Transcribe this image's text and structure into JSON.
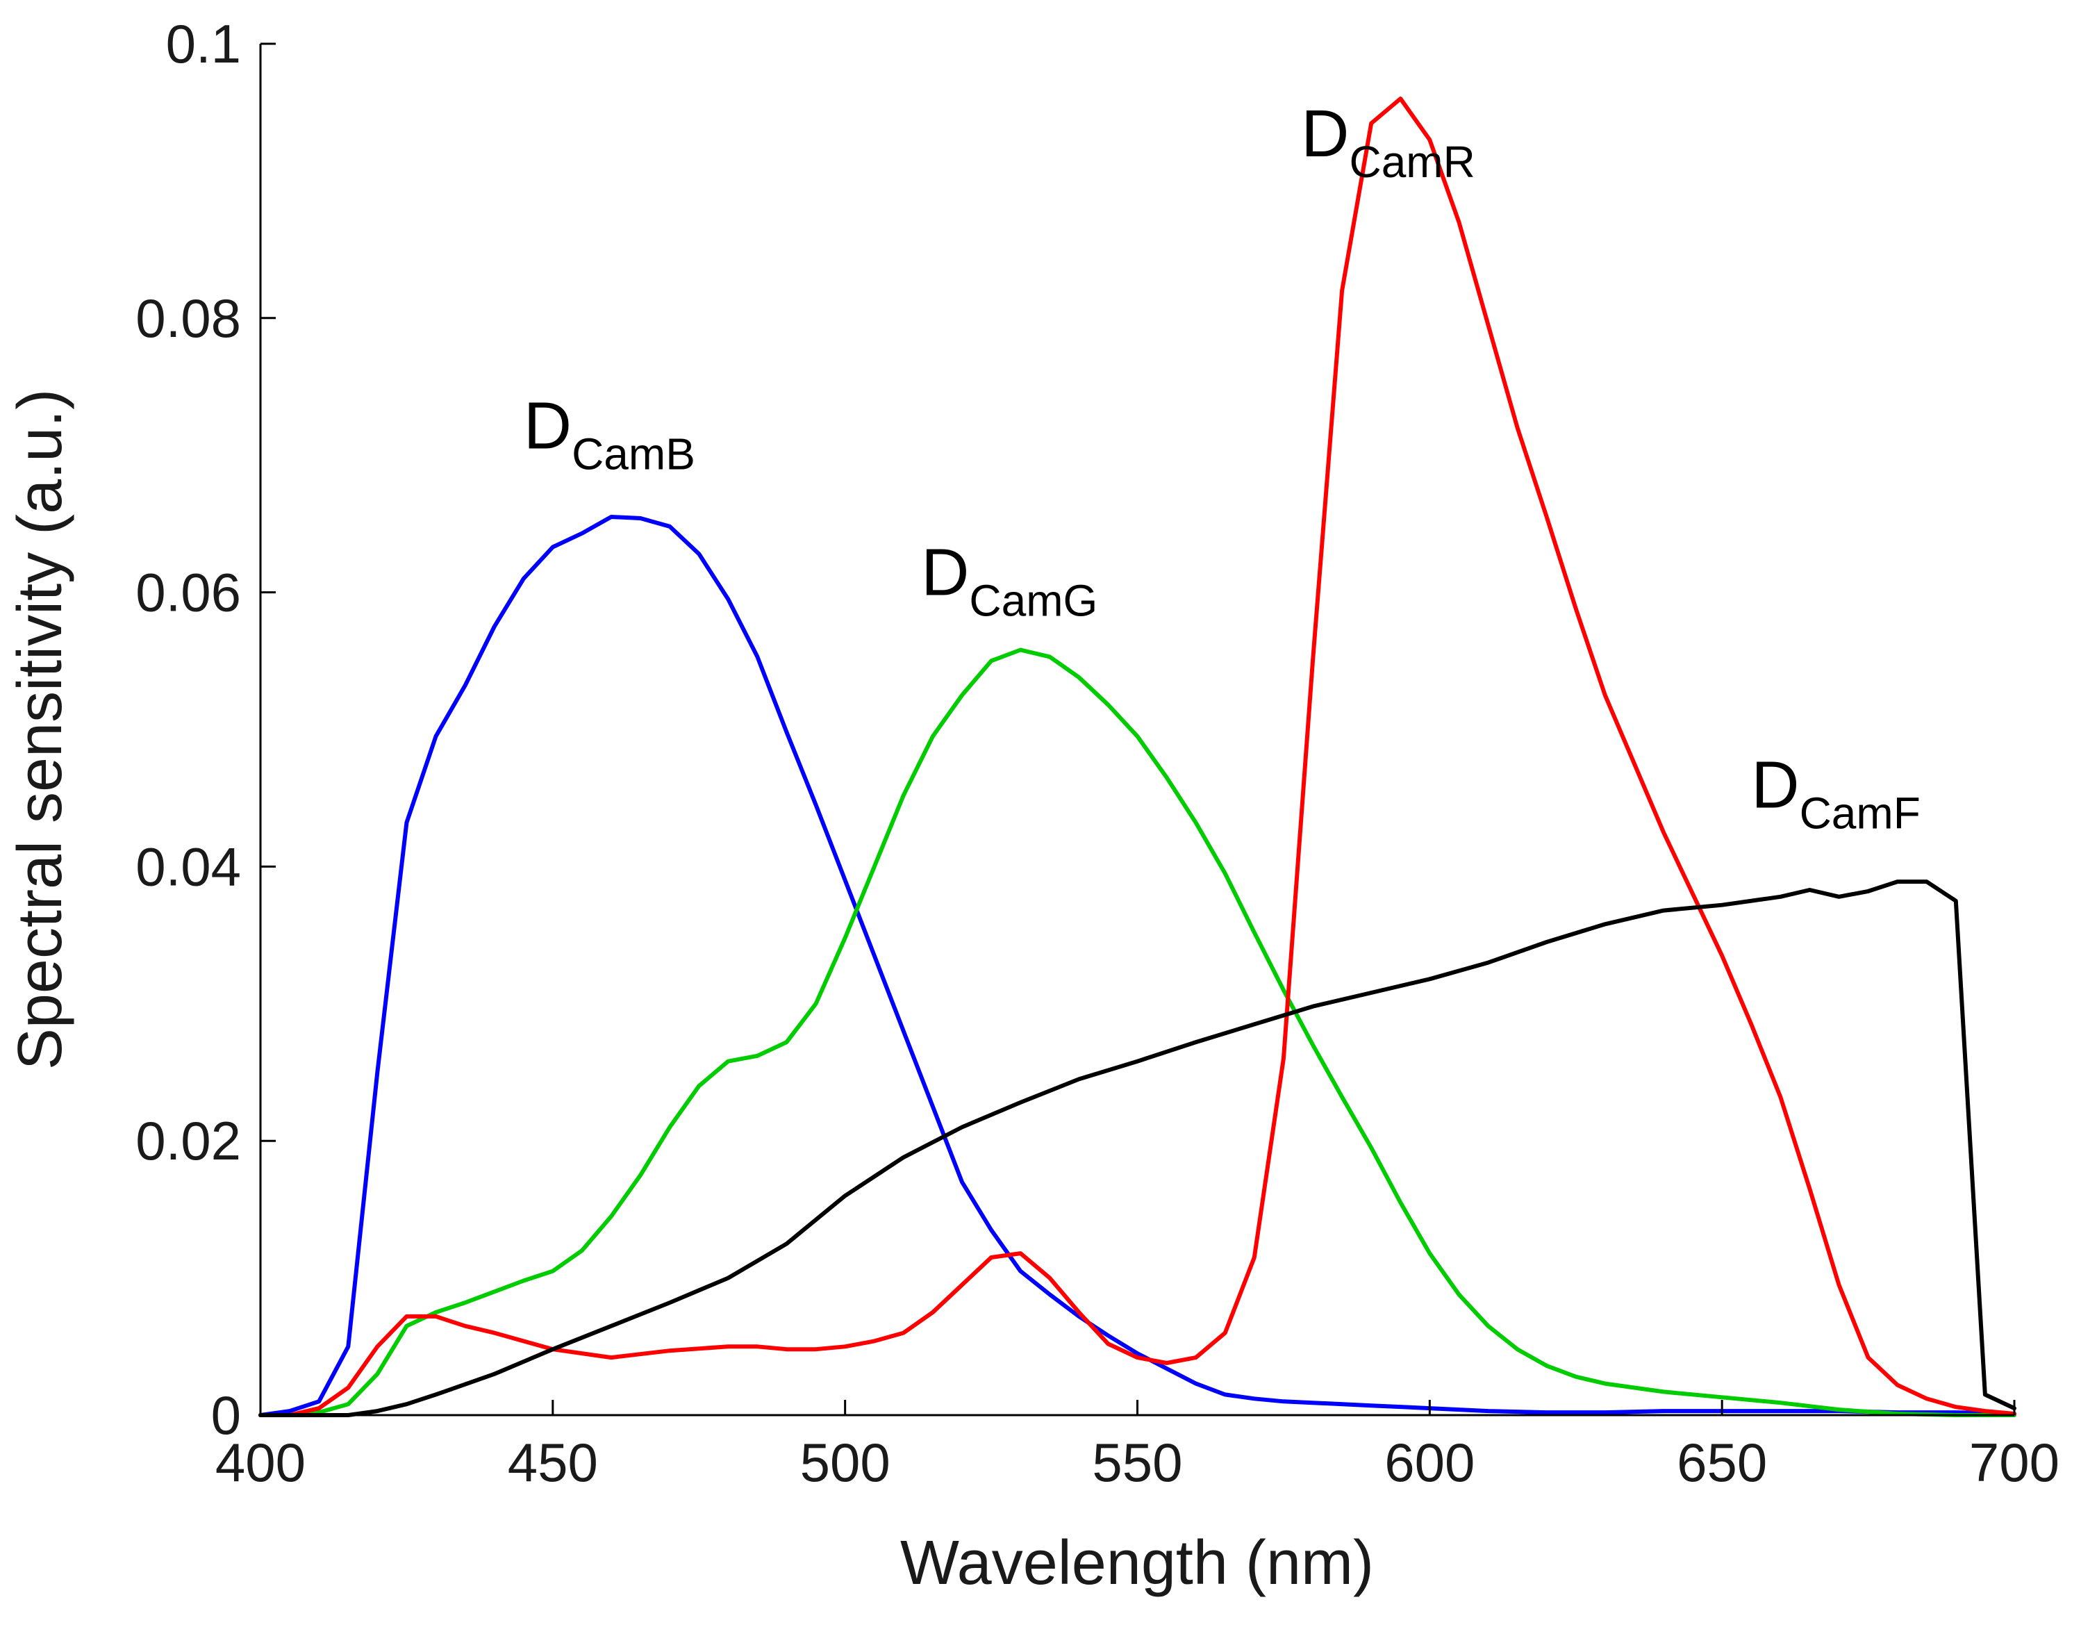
{
  "chart_data": {
    "type": "line",
    "title": "",
    "xlabel": "Wavelength (nm)",
    "ylabel": "Spectral sensitivity (a.u.)",
    "xlim": [
      400,
      700
    ],
    "ylim": [
      0,
      0.1
    ],
    "xticks": [
      400,
      450,
      500,
      550,
      600,
      650,
      700
    ],
    "xtick_labels": [
      "400",
      "450",
      "500",
      "550",
      "600",
      "650",
      "700"
    ],
    "yticks": [
      0,
      0.02,
      0.04,
      0.06,
      0.08,
      0.1
    ],
    "ytick_labels": [
      "0",
      "0.02",
      "0.04",
      "0.06",
      "0.08",
      "0.1"
    ],
    "grid": false,
    "series": [
      {
        "name": "D_CamB",
        "label_main": "D",
        "label_sub": "CamB",
        "color": "#0000ff",
        "label_at": [
          445,
          0.0705
        ],
        "x": [
          400,
          405,
          410,
          415,
          420,
          425,
          430,
          435,
          440,
          445,
          450,
          455,
          460,
          465,
          470,
          475,
          480,
          485,
          490,
          495,
          500,
          505,
          510,
          515,
          520,
          525,
          530,
          535,
          540,
          545,
          550,
          555,
          560,
          565,
          570,
          575,
          580,
          590,
          600,
          610,
          620,
          630,
          640,
          650,
          660,
          670,
          680,
          690,
          700
        ],
        "y": [
          0,
          0.0003,
          0.001,
          0.005,
          0.025,
          0.0432,
          0.0495,
          0.0532,
          0.0575,
          0.061,
          0.0633,
          0.0643,
          0.0655,
          0.0654,
          0.0648,
          0.0628,
          0.0595,
          0.0553,
          0.0498,
          0.0445,
          0.039,
          0.0335,
          0.028,
          0.0225,
          0.017,
          0.0135,
          0.0105,
          0.0088,
          0.0072,
          0.0058,
          0.0045,
          0.0034,
          0.0023,
          0.0015,
          0.0012,
          0.001,
          0.0009,
          0.0007,
          0.0005,
          0.0003,
          0.0002,
          0.0002,
          0.0003,
          0.0003,
          0.0003,
          0.0003,
          0.0002,
          0.0002,
          0.0001
        ]
      },
      {
        "name": "D_CamG",
        "label_main": "D",
        "label_sub": "CamG",
        "color": "#00cc00",
        "label_at": [
          513,
          0.0598
        ],
        "x": [
          400,
          405,
          410,
          415,
          420,
          425,
          430,
          435,
          440,
          445,
          450,
          455,
          460,
          465,
          470,
          475,
          480,
          485,
          490,
          495,
          500,
          505,
          510,
          515,
          520,
          525,
          530,
          535,
          540,
          545,
          550,
          555,
          560,
          565,
          570,
          575,
          580,
          585,
          590,
          595,
          600,
          605,
          610,
          615,
          620,
          625,
          630,
          640,
          650,
          660,
          670,
          680,
          690,
          700
        ],
        "y": [
          0,
          0,
          0.0002,
          0.0008,
          0.003,
          0.0065,
          0.0075,
          0.0082,
          0.009,
          0.0098,
          0.0105,
          0.012,
          0.0145,
          0.0175,
          0.021,
          0.024,
          0.0258,
          0.0262,
          0.0272,
          0.03,
          0.0348,
          0.04,
          0.0452,
          0.0495,
          0.0525,
          0.055,
          0.0558,
          0.0553,
          0.0538,
          0.0518,
          0.0495,
          0.0465,
          0.0432,
          0.0395,
          0.0352,
          0.031,
          0.027,
          0.0232,
          0.0195,
          0.0155,
          0.0118,
          0.0088,
          0.0065,
          0.0048,
          0.0036,
          0.0028,
          0.0023,
          0.0017,
          0.0013,
          0.0009,
          0.0004,
          0.0001,
          0,
          0
        ]
      },
      {
        "name": "D_CamR",
        "label_main": "D",
        "label_sub": "CamR",
        "color": "#ff0000",
        "label_at": [
          578,
          0.0918
        ],
        "x": [
          400,
          405,
          410,
          415,
          420,
          425,
          430,
          435,
          440,
          450,
          460,
          470,
          480,
          485,
          490,
          495,
          500,
          505,
          510,
          515,
          520,
          525,
          530,
          535,
          540,
          545,
          550,
          555,
          560,
          565,
          570,
          575,
          580,
          585,
          590,
          595,
          600,
          605,
          610,
          615,
          620,
          625,
          630,
          635,
          640,
          645,
          650,
          655,
          660,
          665,
          670,
          675,
          680,
          685,
          690,
          695,
          700
        ],
        "y": [
          0,
          0,
          0.0005,
          0.002,
          0.005,
          0.0072,
          0.0072,
          0.0065,
          0.006,
          0.0048,
          0.0042,
          0.0047,
          0.005,
          0.005,
          0.0048,
          0.0048,
          0.005,
          0.0054,
          0.006,
          0.0075,
          0.0095,
          0.0115,
          0.0118,
          0.01,
          0.0075,
          0.0052,
          0.0042,
          0.0038,
          0.0042,
          0.006,
          0.0115,
          0.026,
          0.055,
          0.082,
          0.0942,
          0.096,
          0.093,
          0.087,
          0.0795,
          0.072,
          0.0655,
          0.0588,
          0.0525,
          0.0475,
          0.0425,
          0.038,
          0.0335,
          0.0285,
          0.0232,
          0.0165,
          0.0095,
          0.0042,
          0.0022,
          0.0012,
          0.0006,
          0.0003,
          0.0001
        ]
      },
      {
        "name": "D_CamF",
        "label_main": "D",
        "label_sub": "CamF",
        "color": "#000000",
        "label_at": [
          655,
          0.0443
        ],
        "x": [
          400,
          405,
          410,
          415,
          420,
          425,
          430,
          440,
          450,
          460,
          470,
          480,
          490,
          500,
          510,
          520,
          530,
          540,
          550,
          560,
          570,
          580,
          590,
          600,
          610,
          620,
          630,
          640,
          650,
          660,
          665,
          670,
          675,
          680,
          685,
          690,
          695,
          700
        ],
        "y": [
          0,
          0,
          0,
          0,
          0.0003,
          0.0008,
          0.0015,
          0.003,
          0.0048,
          0.0065,
          0.0082,
          0.01,
          0.0125,
          0.016,
          0.0188,
          0.021,
          0.0228,
          0.0245,
          0.0258,
          0.0272,
          0.0285,
          0.0298,
          0.0308,
          0.0318,
          0.033,
          0.0345,
          0.0358,
          0.0368,
          0.0372,
          0.0378,
          0.0383,
          0.0378,
          0.0382,
          0.0389,
          0.0389,
          0.0375,
          0.0015,
          0.0005
        ]
      }
    ]
  }
}
